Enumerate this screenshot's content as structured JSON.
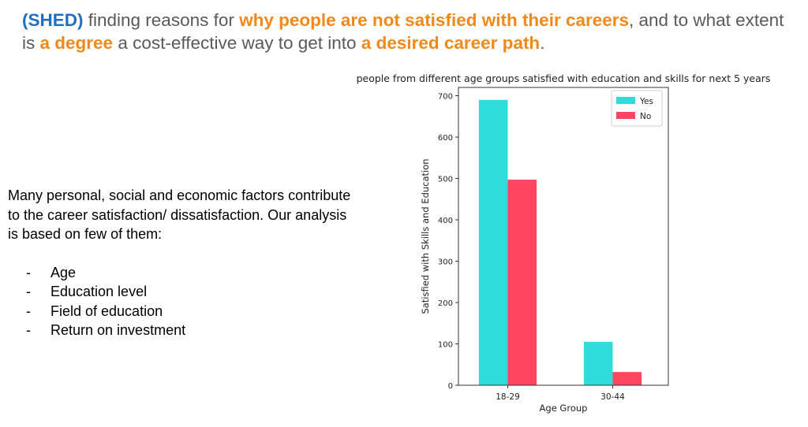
{
  "headline": {
    "prefix": "(SHED)",
    "part1": " finding reasons for ",
    "emph1": "why people are not satisfied with their careers",
    "part2": ", and to what extent is ",
    "emph2": "a degree",
    "part3": " a cost-effective way to get into ",
    "emph3": "a desired career path",
    "part4": "."
  },
  "body": {
    "intro": "Many personal, social and economic factors contribute to the career satisfaction/ dissatisfaction. Our analysis is based on few of them:",
    "bullet_marker": "-",
    "bullets": [
      "Age",
      "Education level",
      "Field of education",
      "Return on investment"
    ]
  },
  "chart_data": {
    "type": "bar",
    "title": "people from different age groups satisfied with education and skills for next 5 years",
    "xlabel": "Age Group",
    "ylabel": "Satisfied with Skills and Education",
    "categories": [
      "18-29",
      "30-44"
    ],
    "series": [
      {
        "name": "Yes",
        "values": [
          690,
          105
        ],
        "color": "#2edcdc"
      },
      {
        "name": "No",
        "values": [
          497,
          32
        ],
        "color": "#ff4560"
      }
    ],
    "ylim": [
      0,
      720
    ],
    "yticks": [
      0,
      100,
      200,
      300,
      400,
      500,
      600,
      700
    ],
    "legend": "top-right",
    "grid": false
  }
}
